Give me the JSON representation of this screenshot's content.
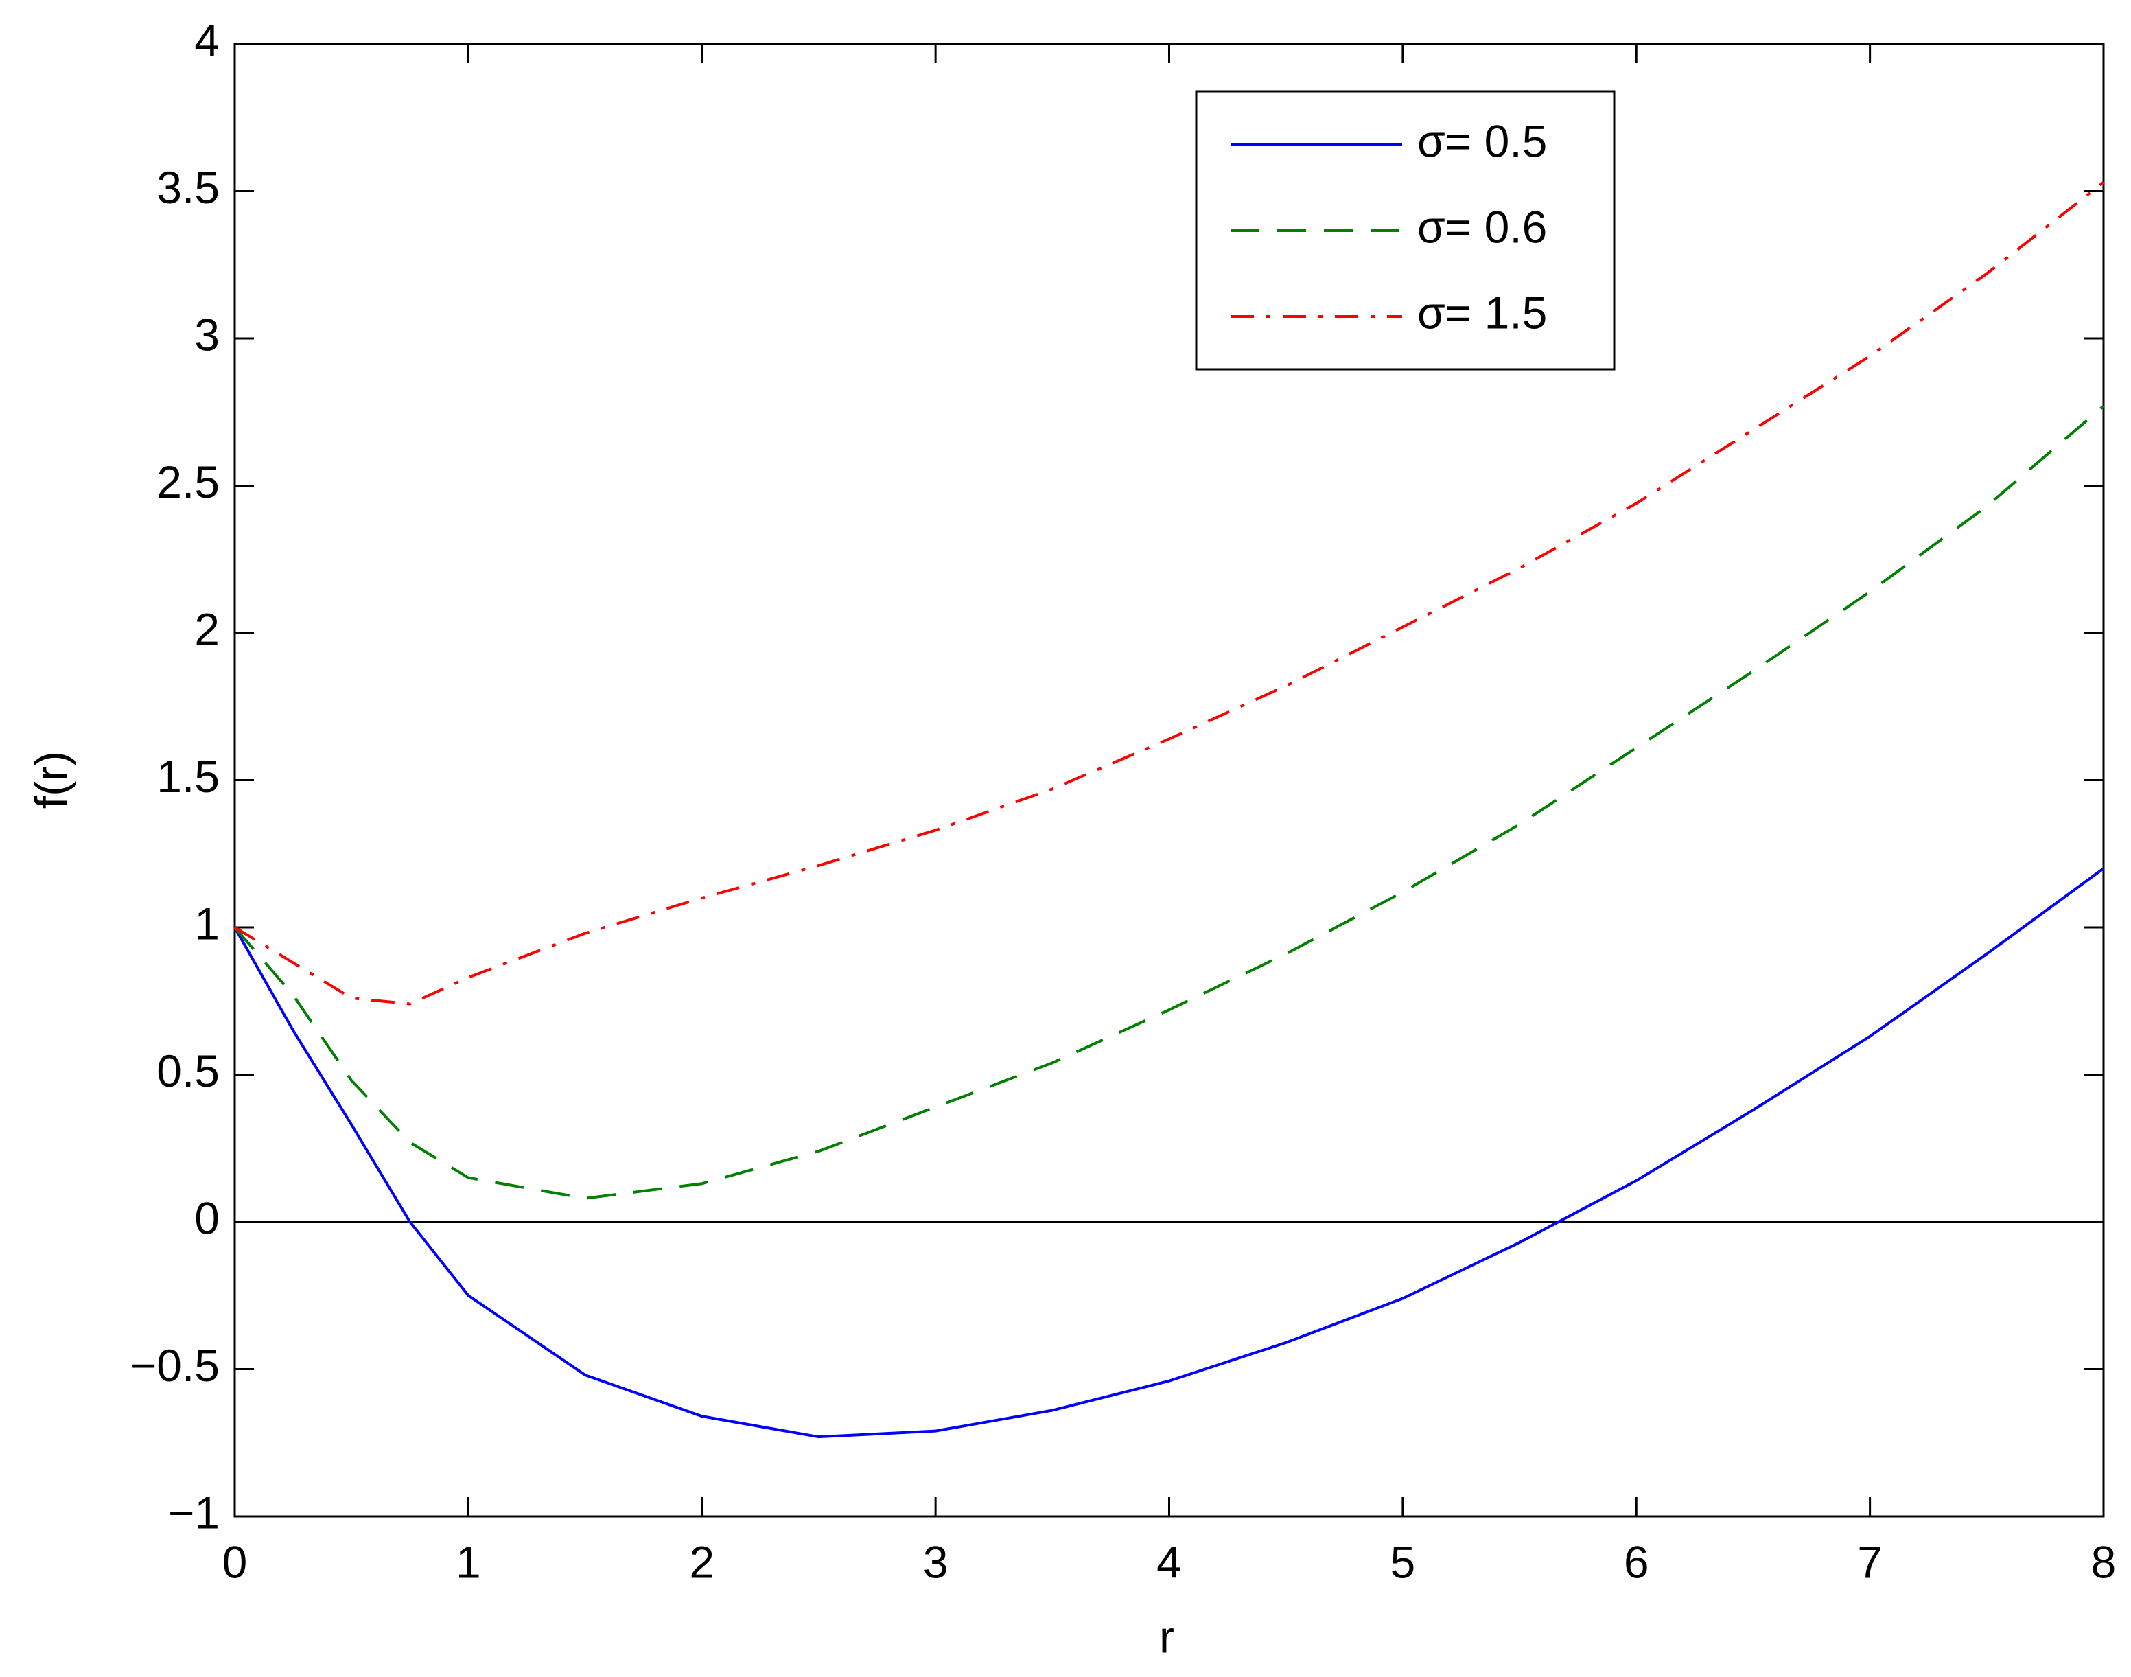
{
  "chart_data": {
    "type": "line",
    "x_label": "r",
    "y_label": "f(r)",
    "x": [
      0,
      0.25,
      0.5,
      0.75,
      1,
      1.5,
      2,
      2.5,
      3,
      3.5,
      4,
      4.5,
      5,
      5.5,
      6,
      6.5,
      7,
      7.5,
      8
    ],
    "series": [
      {
        "name": "σ= 0.5",
        "color": "#0000ff",
        "linestyle": "solid",
        "values": [
          1,
          0.65,
          0.33,
          0.0,
          -0.25,
          -0.52,
          -0.66,
          -0.73,
          -0.71,
          -0.64,
          -0.54,
          -0.41,
          -0.26,
          -0.07,
          0.14,
          0.38,
          0.63,
          0.91,
          1.2
        ]
      },
      {
        "name": "σ= 0.6",
        "color": "#008000",
        "linestyle": "dashed",
        "values": [
          1,
          0.77,
          0.48,
          0.27,
          0.15,
          0.08,
          0.13,
          0.24,
          0.39,
          0.54,
          0.72,
          0.91,
          1.12,
          1.35,
          1.61,
          1.87,
          2.14,
          2.43,
          2.77
        ]
      },
      {
        "name": "σ= 1.5",
        "color": "#ff0000",
        "linestyle": "dashdot",
        "values": [
          1,
          0.88,
          0.76,
          0.74,
          0.83,
          0.98,
          1.1,
          1.21,
          1.33,
          1.47,
          1.64,
          1.82,
          2.02,
          2.22,
          2.44,
          2.69,
          2.94,
          3.22,
          3.53
        ]
      }
    ],
    "reference_line": 0,
    "xlim": [
      0,
      8
    ],
    "xticks": [
      0,
      1,
      2,
      3,
      4,
      5,
      6,
      7,
      8
    ],
    "ylim": [
      -1,
      4
    ],
    "yticks": [
      {
        "value": -1,
        "label": "−1"
      },
      {
        "value": -0.5,
        "label": "−0.5"
      },
      0,
      0.5,
      1,
      1.5,
      2,
      2.5,
      3,
      3.5,
      4
    ],
    "grid": false,
    "legend": "upper right"
  }
}
